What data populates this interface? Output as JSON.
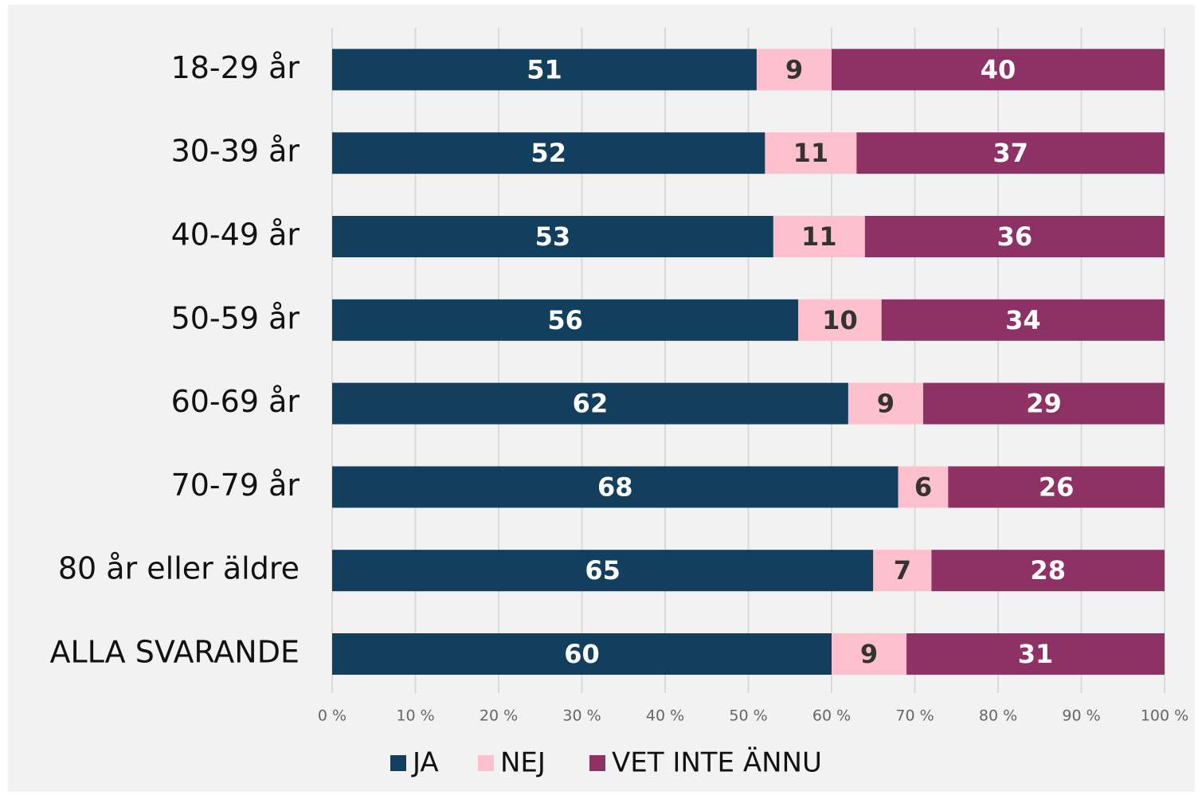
{
  "chart_data": {
    "type": "stacked_bar_horizontal",
    "categories": [
      "18-29 år",
      "30-39 år",
      "40-49 år",
      "50-59 år",
      "60-69 år",
      "70-79 år",
      "80 år eller äldre",
      "ALLA SVARANDE"
    ],
    "series": [
      {
        "name": "JA",
        "color": "#133f5f",
        "values": [
          51,
          52,
          53,
          56,
          62,
          68,
          65,
          60
        ]
      },
      {
        "name": "NEJ",
        "color": "#fdc0cc",
        "values": [
          9,
          11,
          11,
          10,
          9,
          6,
          7,
          9
        ]
      },
      {
        "name": "VET INTE ÄNNU",
        "color": "#8e3265",
        "values": [
          40,
          37,
          36,
          34,
          29,
          26,
          28,
          31
        ]
      }
    ],
    "xlim": [
      0,
      100
    ],
    "xticks": [
      {
        "value": 0,
        "label": "0 %"
      },
      {
        "value": 10,
        "label": "10 %"
      },
      {
        "value": 20,
        "label": "20 %"
      },
      {
        "value": 30,
        "label": "30 %"
      },
      {
        "value": 40,
        "label": "40 %"
      },
      {
        "value": 50,
        "label": "50 %"
      },
      {
        "value": 60,
        "label": "60 %"
      },
      {
        "value": 70,
        "label": "70 %"
      },
      {
        "value": 80,
        "label": "80 %"
      },
      {
        "value": 90,
        "label": "90 %"
      },
      {
        "value": 100,
        "label": "100 %"
      }
    ],
    "grid": true,
    "legend": "bottom"
  }
}
